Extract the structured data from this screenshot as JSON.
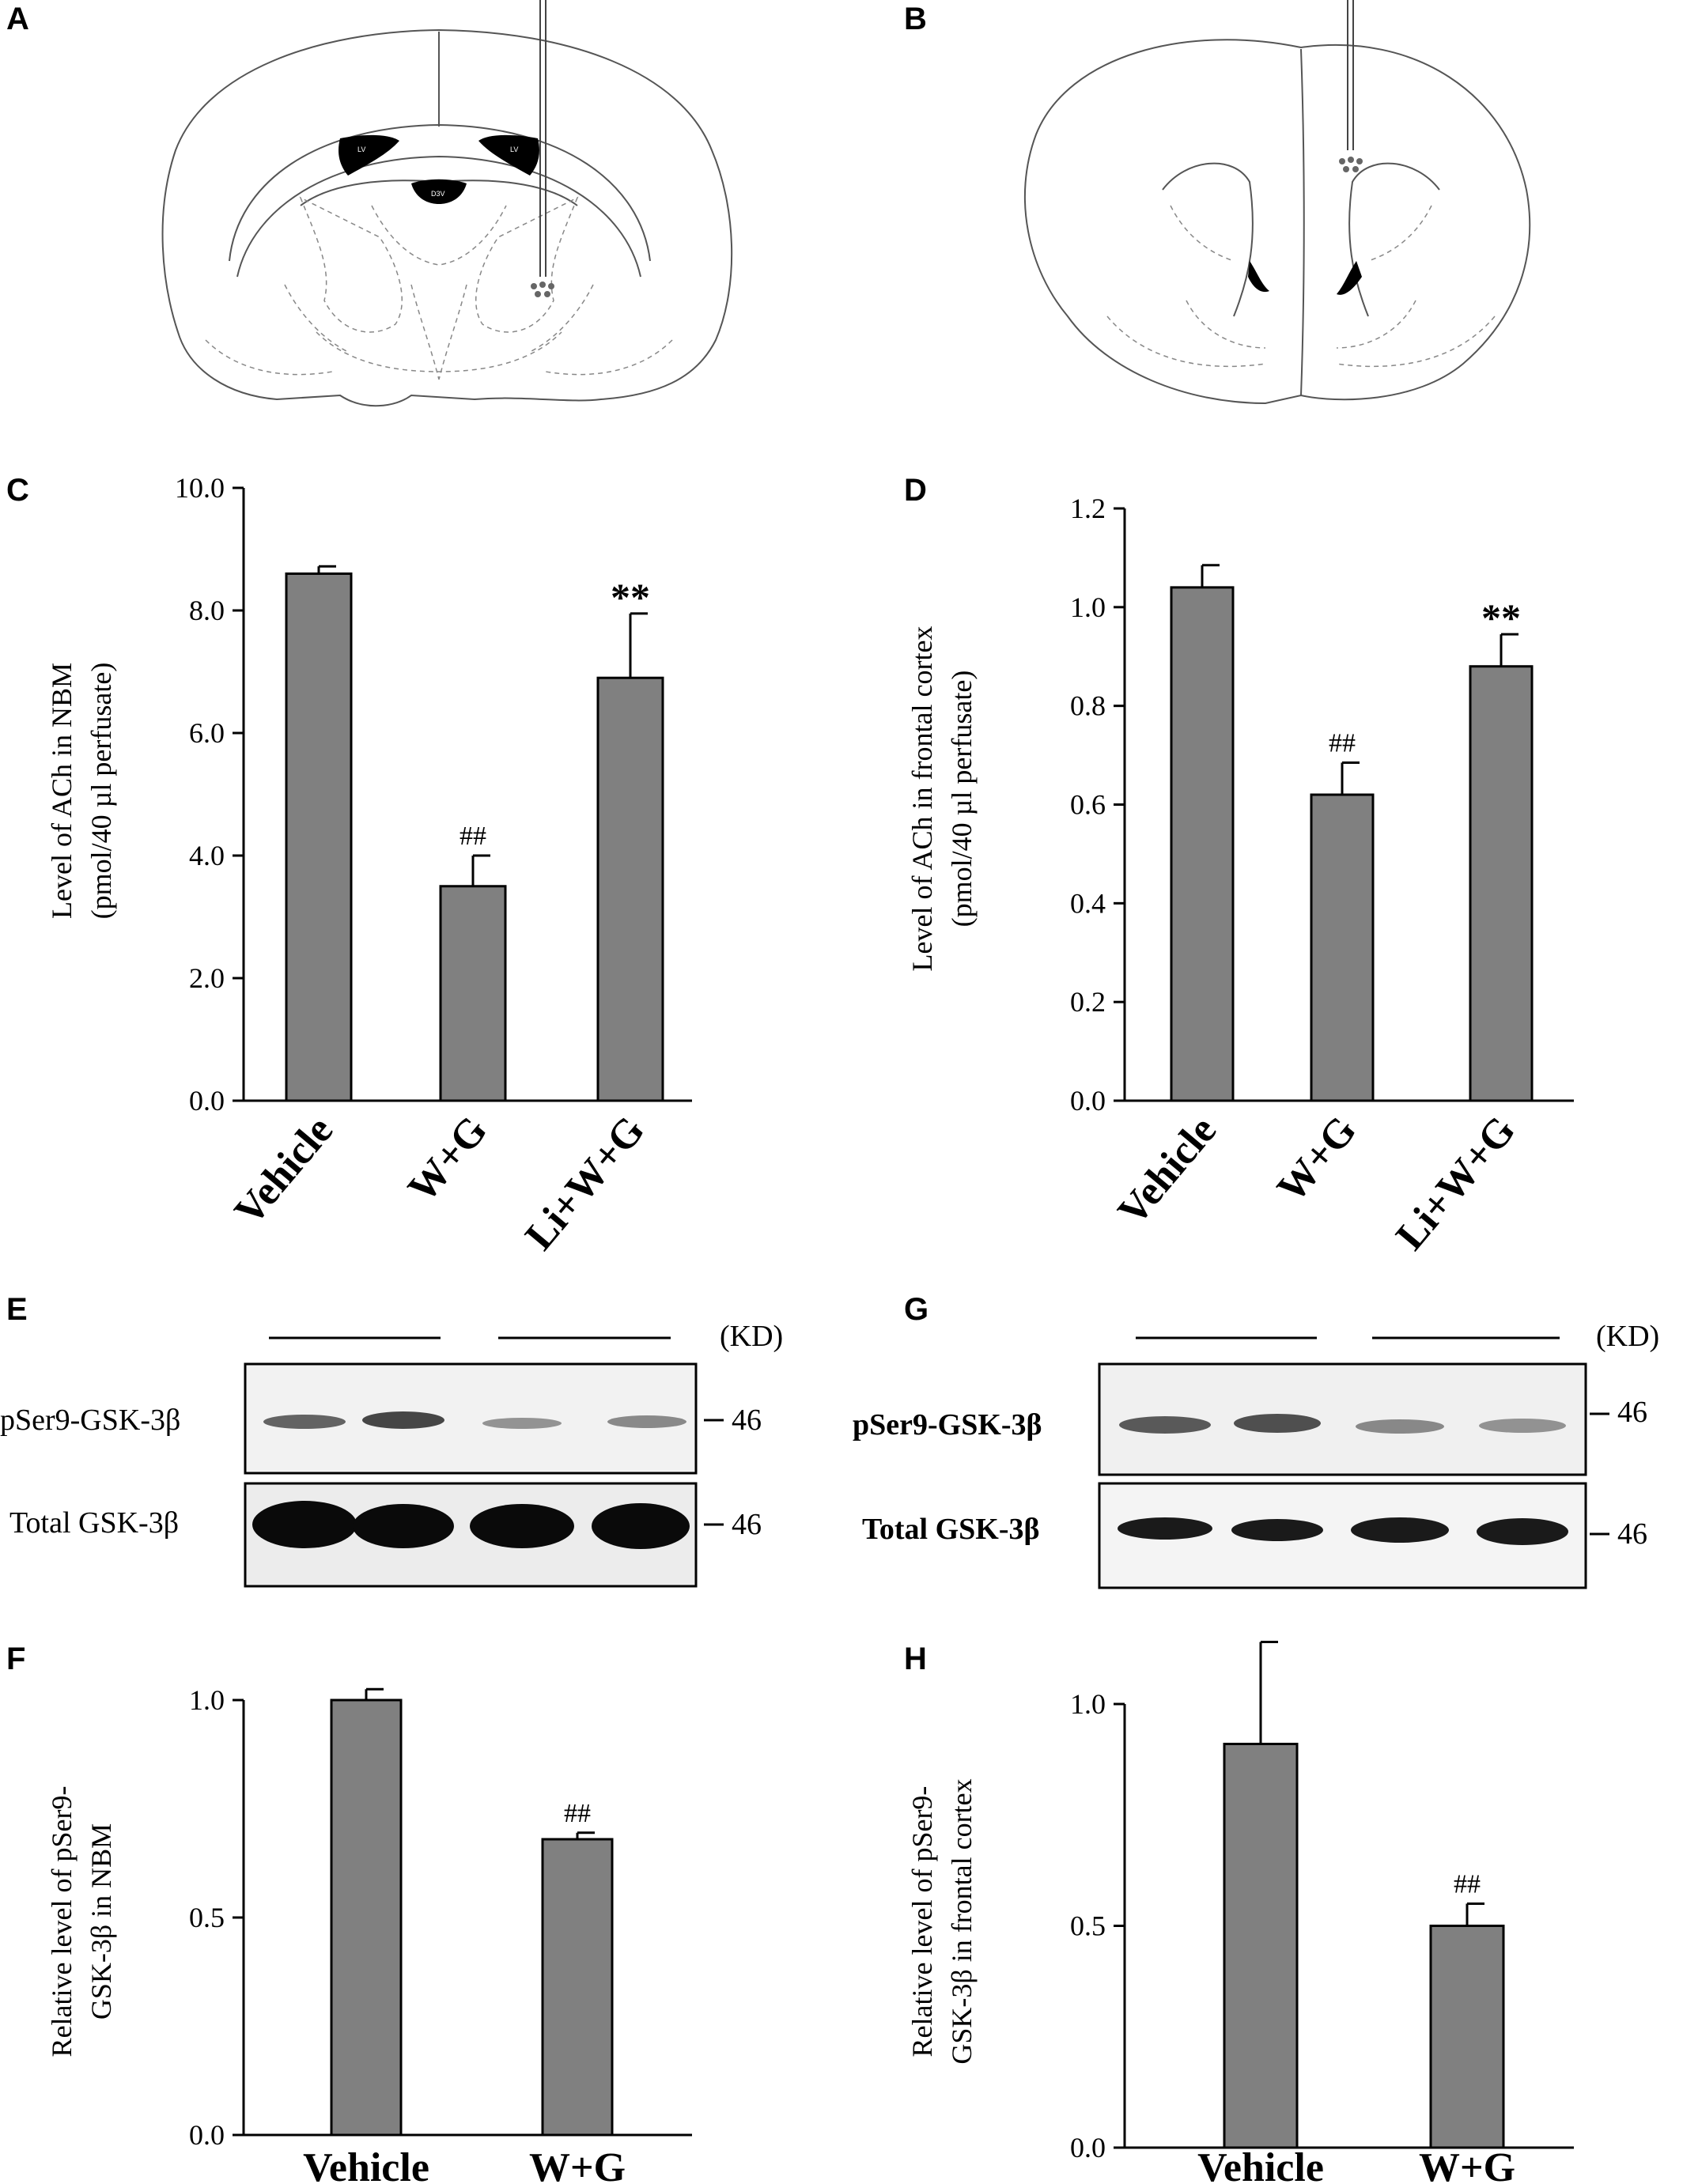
{
  "panels": {
    "A": "A",
    "B": "B",
    "C": "C",
    "D": "D",
    "E": "E",
    "F": "F",
    "G": "G",
    "H": "H"
  },
  "brain_A": {
    "labels": [
      "LV",
      "LV",
      "D3V"
    ]
  },
  "blots": {
    "E": {
      "unit": "(KD)",
      "row1": "pSer9-GSK-3β",
      "row2": "Total GSK-3β",
      "mw1": "46",
      "mw2": "46"
    },
    "G": {
      "unit": "(KD)",
      "row1": "pSer9-GSK-3β",
      "row2": "Total GSK-3β",
      "mw1": "46",
      "mw2": "46"
    }
  },
  "colors": {
    "bar": "#808080",
    "line": "#000000"
  },
  "chart_data": [
    {
      "panel": "C",
      "type": "bar",
      "categories": [
        "Vehicle",
        "W+G",
        "Li+W+G"
      ],
      "values": [
        8.6,
        3.5,
        6.9
      ],
      "errors": [
        0.12,
        0.5,
        1.05
      ],
      "annotations": [
        "",
        "##",
        "**"
      ],
      "ylabel_line1": "Level of ACh in NBM",
      "ylabel_line2": "(pmol/40 µl perfusate)",
      "ylim": [
        0,
        10
      ],
      "yticks": [
        "0.0",
        "2.0",
        "4.0",
        "6.0",
        "8.0",
        "10.0"
      ]
    },
    {
      "panel": "D",
      "type": "bar",
      "categories": [
        "Vehicle",
        "W+G",
        "Li+W+G"
      ],
      "values": [
        1.04,
        0.62,
        0.88
      ],
      "errors": [
        0.045,
        0.065,
        0.065
      ],
      "annotations": [
        "",
        "##",
        "**"
      ],
      "ylabel_line1": "Level of ACh in frontal cortex",
      "ylabel_line2": "(pmol/40 µl perfusate)",
      "ylim": [
        0,
        1.2
      ],
      "yticks": [
        "0.0",
        "0.2",
        "0.4",
        "0.6",
        "0.8",
        "1.0",
        "1.2"
      ]
    },
    {
      "panel": "F",
      "type": "bar",
      "categories": [
        "Vehicle",
        "W+G"
      ],
      "values": [
        1.0,
        0.68
      ],
      "errors": [
        0.025,
        0.015
      ],
      "annotations": [
        "",
        "##"
      ],
      "ylabel_line1": "Relative level of pSer9-",
      "ylabel_line2": "GSK-3β in NBM",
      "ylim": [
        0,
        1.0
      ],
      "yticks": [
        "0.0",
        "0.5",
        "1.0"
      ]
    },
    {
      "panel": "H",
      "type": "bar",
      "categories": [
        "Vehicle",
        "W+G"
      ],
      "values": [
        0.91,
        0.5
      ],
      "errors": [
        0.23,
        0.05
      ],
      "annotations": [
        "",
        "##"
      ],
      "ylabel_line1": "Relative level of pSer9-",
      "ylabel_line2": "GSK-3β in frontal cortex",
      "ylim": [
        0,
        1.0
      ],
      "yticks": [
        "0.0",
        "0.5",
        "1.0"
      ]
    }
  ]
}
